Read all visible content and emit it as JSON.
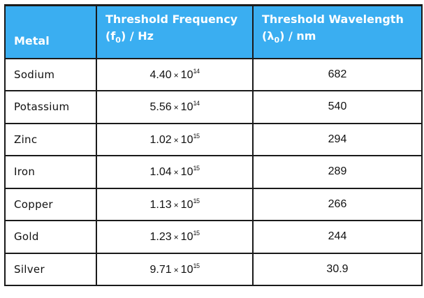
{
  "headers": {
    "metal": "Metal",
    "freq_line1": "Threshold Frequency",
    "freq_line2_prefix": "(f",
    "freq_line2_sub": "0",
    "freq_line2_suffix": ") / Hz",
    "wave_line1": "Threshold Wavelength",
    "wave_line2_prefix": "(λ",
    "wave_line2_sub": "0",
    "wave_line2_suffix": ") / nm"
  },
  "times_symbol": "×",
  "rows": [
    {
      "metal": "Sodium",
      "mantissa": "4.40",
      "base": "10",
      "exponent": "14",
      "wavelength": "682"
    },
    {
      "metal": "Potassium",
      "mantissa": "5.56",
      "base": "10",
      "exponent": "14",
      "wavelength": "540"
    },
    {
      "metal": "Zinc",
      "mantissa": "1.02",
      "base": "10",
      "exponent": "15",
      "wavelength": "294"
    },
    {
      "metal": "Iron",
      "mantissa": "1.04",
      "base": "10",
      "exponent": "15",
      "wavelength": "289"
    },
    {
      "metal": "Copper",
      "mantissa": "1.13",
      "base": "10",
      "exponent": "15",
      "wavelength": "266"
    },
    {
      "metal": "Gold",
      "mantissa": "1.23",
      "base": "10",
      "exponent": "15",
      "wavelength": "244"
    },
    {
      "metal": "Silver",
      "mantissa": "9.71",
      "base": "10",
      "exponent": "15",
      "wavelength": "30.9"
    }
  ]
}
